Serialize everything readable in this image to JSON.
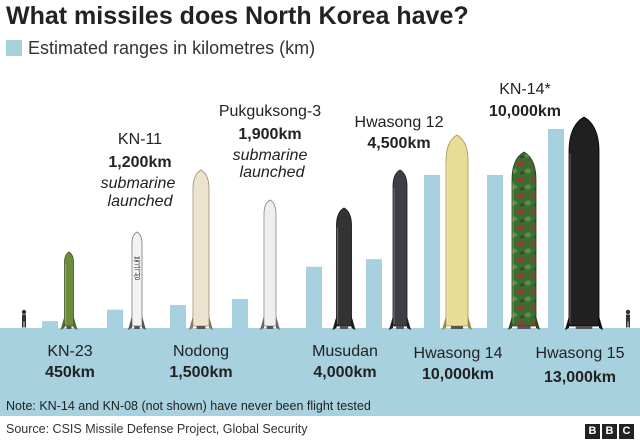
{
  "title": "What missiles does North Korea have?",
  "legend": {
    "label": "Estimated ranges in kilometres (km)",
    "color": "#a7d1de"
  },
  "chart_data": {
    "type": "bar",
    "title": "What missiles does North Korea have?",
    "ylabel": "",
    "xlabel": "",
    "ylim": [
      0,
      13000
    ],
    "legend_position": "top-left",
    "grid": false,
    "bar_color": "#a7d1de",
    "categories": [
      "KN-23",
      "KN-11",
      "Nodong",
      "Pukguksong-3",
      "Musudan",
      "Hwasong 12",
      "Hwasong 14",
      "KN-14*",
      "Hwasong 15"
    ],
    "series": [
      {
        "values": [
          450,
          1200,
          1500,
          1900,
          4000,
          4500,
          10000,
          10000,
          13000
        ]
      }
    ],
    "range_labels": [
      "450km",
      "1,200km",
      "1,500km",
      "1,900km",
      "4,000km",
      "4,500km",
      "10,000km",
      "10,000km",
      "13,000km"
    ],
    "annotations": {
      "KN-11": [
        "submarine",
        "launched"
      ],
      "Pukguksong-3": [
        "submarine",
        "launched"
      ]
    }
  },
  "missile_markings": {
    "KN-11": "북극성",
    "Nodong": "",
    "Musudan": "",
    "Hwasong 12": "",
    "Hwasong 14": "",
    "KN-14*": "",
    "Hwasong 15": ""
  },
  "note": "Note: KN-14 and KN-08 (not shown) have never been flight tested",
  "source": "Source: CSIS Missile Defense Project, Global Security",
  "logo": [
    "B",
    "B",
    "C"
  ]
}
